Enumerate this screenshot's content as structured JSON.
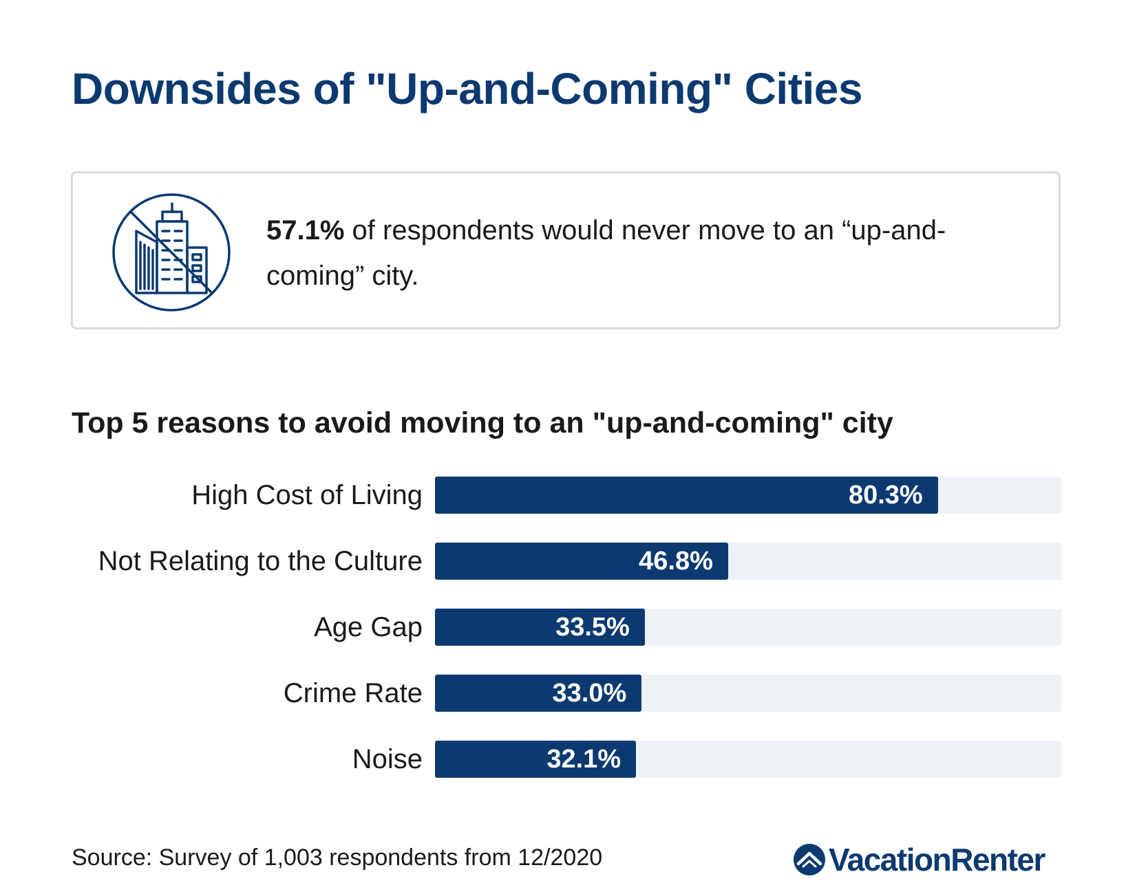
{
  "title": "Downsides of \"Up-and-Coming\" Cities",
  "callout": {
    "highlight": "57.1%",
    "text": " of respondents would never move to an “up-and-coming” city.",
    "icon": "no-city-icon"
  },
  "chart_data": {
    "type": "bar",
    "orientation": "horizontal",
    "title": "Top 5 reasons to avoid moving to an \"up-and-coming\" city",
    "categories": [
      "High Cost of Living",
      "Not Relating to the Culture",
      "Age Gap",
      "Crime Rate",
      "Noise"
    ],
    "values": [
      80.3,
      46.8,
      33.5,
      33.0,
      32.1
    ],
    "value_labels": [
      "80.3%",
      "46.8%",
      "33.5%",
      "33.0%",
      "32.1%"
    ],
    "xlim": [
      0,
      100
    ],
    "unit": "%",
    "grid": false,
    "colors": {
      "bar": "#0c3a70",
      "track": "#eef2f6"
    }
  },
  "source": "Source: Survey of 1,003 respondents from 12/2020",
  "logo": {
    "text": "VacationRenter",
    "icon": "house-logo-icon",
    "color": "#0c3a70"
  }
}
